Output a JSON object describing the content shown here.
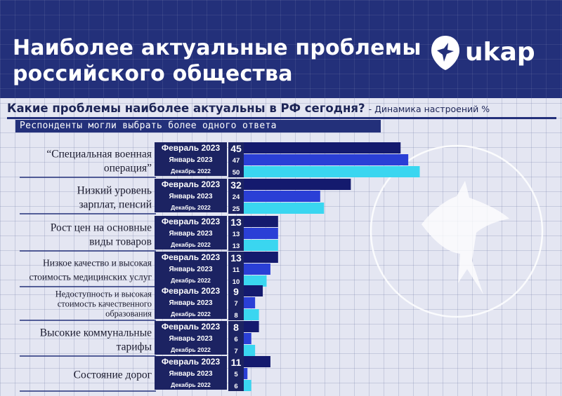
{
  "header": {
    "title_line1": "Наиболее актуальные проблемы",
    "title_line2": "российского общества",
    "logo_text": "ukap"
  },
  "subtitle": {
    "question": "Какие проблемы наиболее актуальны в РФ сегодня?",
    "note": "- Динамика настроений %",
    "respondents": "Респонденты могли выбрать более одного ответа"
  },
  "colors": {
    "header_bg": "#23307a",
    "feb": "#141a6e",
    "jan": "#2a3fd6",
    "dec": "#3ad6f0",
    "label_box": "#1c2362"
  },
  "chart_data": {
    "type": "bar",
    "orientation": "horizontal",
    "unit": "%",
    "series_labels": [
      "Февраль 2023",
      "Январь 2023",
      "Декабрь 2022"
    ],
    "categories": [
      {
        "label_lines": [
          "“Специальная военная",
          "операция”"
        ],
        "values": [
          45,
          47,
          50
        ]
      },
      {
        "label_lines": [
          "Низкий уровень",
          "зарплат, пенсий"
        ],
        "values": [
          32,
          24,
          25
        ]
      },
      {
        "label_lines": [
          "Рост цен на основные",
          "виды товаров"
        ],
        "values": [
          13,
          13,
          13
        ]
      },
      {
        "label_lines": [
          "Низкое качество и высокая",
          "стоимость медицинских услуг"
        ],
        "values": [
          13,
          11,
          10
        ]
      },
      {
        "label_lines": [
          "Недоступность и высокая",
          "стоимость качественного",
          "образования"
        ],
        "values": [
          9,
          7,
          8
        ]
      },
      {
        "label_lines": [
          "Высокие коммунальные",
          "тарифы"
        ],
        "values": [
          8,
          6,
          7
        ]
      },
      {
        "label_lines": [
          "Состояние дорог"
        ],
        "values": [
          11,
          5,
          6
        ]
      }
    ]
  }
}
